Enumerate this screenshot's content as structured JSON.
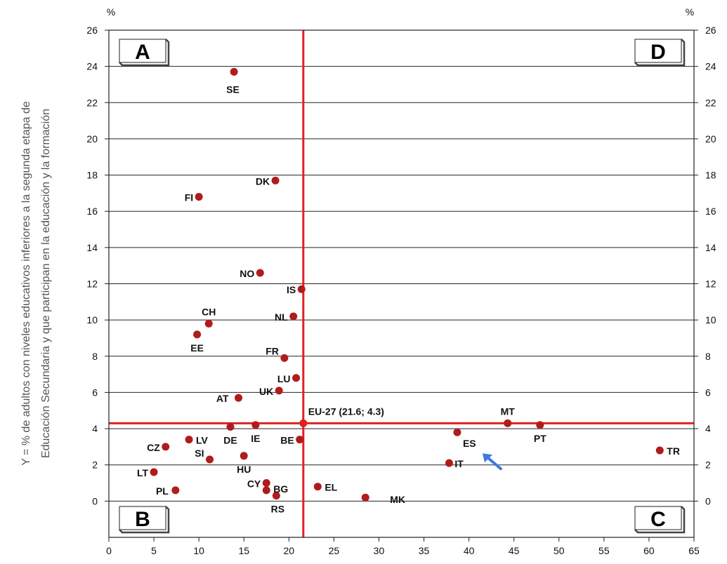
{
  "chart_data": {
    "type": "scatter",
    "title": "",
    "xlabel": "",
    "ylabel_lines": [
      "Y = % de adultos con niveles educativos inferiores a la segunda etapa de",
      "Educación Secundaria y que participan en la educación y la formación"
    ],
    "unit_left": "%",
    "unit_right": "%",
    "xlim": [
      0,
      65
    ],
    "ylim": [
      -2,
      26
    ],
    "x_ticks": [
      "0",
      "5",
      "10",
      "15",
      "20",
      "25",
      "30",
      "35",
      "40",
      "45",
      "50",
      "55",
      "60",
      "65"
    ],
    "y_ticks": [
      "0",
      "2",
      "4",
      "6",
      "8",
      "10",
      "12",
      "14",
      "16",
      "18",
      "20",
      "22",
      "24",
      "26"
    ],
    "grid": "horizontal",
    "point_color": "#b01c1c",
    "reference_color": "#e02020",
    "arrow_color": "#3a7be0",
    "reference": {
      "x": 21.6,
      "y": 4.3,
      "label": "EU-27 (21.6; 4.3)"
    },
    "quadrants": [
      "A",
      "B",
      "C",
      "D"
    ],
    "points": [
      {
        "label": "SE",
        "x": 13.9,
        "y": 23.7
      },
      {
        "label": "DK",
        "x": 18.5,
        "y": 17.7
      },
      {
        "label": "FI",
        "x": 10.0,
        "y": 16.8
      },
      {
        "label": "NO",
        "x": 16.8,
        "y": 12.6
      },
      {
        "label": "IS",
        "x": 21.4,
        "y": 11.7
      },
      {
        "label": "NL",
        "x": 20.5,
        "y": 10.2
      },
      {
        "label": "CH",
        "x": 11.1,
        "y": 9.8
      },
      {
        "label": "EE",
        "x": 9.8,
        "y": 9.2
      },
      {
        "label": "FR",
        "x": 19.5,
        "y": 7.9
      },
      {
        "label": "LU",
        "x": 20.8,
        "y": 6.8
      },
      {
        "label": "UK",
        "x": 18.9,
        "y": 6.1
      },
      {
        "label": "AT",
        "x": 14.4,
        "y": 5.7
      },
      {
        "label": "DE",
        "x": 13.5,
        "y": 4.1
      },
      {
        "label": "IE",
        "x": 16.3,
        "y": 4.2
      },
      {
        "label": "BE",
        "x": 21.2,
        "y": 3.4
      },
      {
        "label": "LV",
        "x": 8.9,
        "y": 3.4
      },
      {
        "label": "CZ",
        "x": 6.3,
        "y": 3.0
      },
      {
        "label": "SI",
        "x": 11.2,
        "y": 2.3
      },
      {
        "label": "HU",
        "x": 15.0,
        "y": 2.5
      },
      {
        "label": "LT",
        "x": 5.0,
        "y": 1.6
      },
      {
        "label": "PL",
        "x": 7.4,
        "y": 0.6
      },
      {
        "label": "CY",
        "x": 17.5,
        "y": 1.0
      },
      {
        "label": "BG",
        "x": 17.5,
        "y": 0.6
      },
      {
        "label": "RS",
        "x": 18.6,
        "y": 0.3
      },
      {
        "label": "EL",
        "x": 23.2,
        "y": 0.8
      },
      {
        "label": "MK",
        "x": 28.5,
        "y": 0.2
      },
      {
        "label": "ES",
        "x": 38.7,
        "y": 3.8
      },
      {
        "label": "IT",
        "x": 37.8,
        "y": 2.1
      },
      {
        "label": "MT",
        "x": 44.3,
        "y": 4.3
      },
      {
        "label": "PT",
        "x": 47.9,
        "y": 4.2
      },
      {
        "label": "TR",
        "x": 61.2,
        "y": 2.8
      }
    ]
  }
}
